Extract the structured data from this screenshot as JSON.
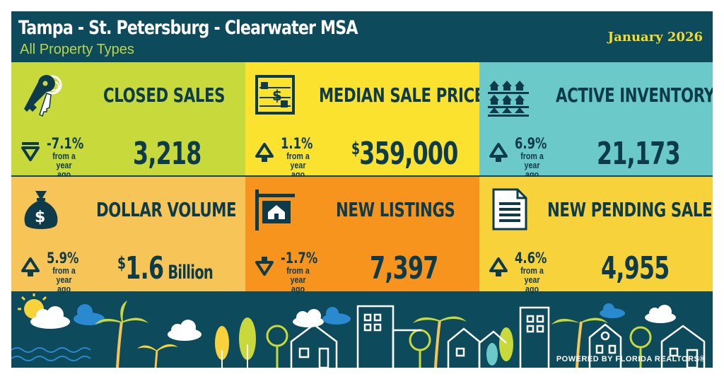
{
  "header": {
    "title": "Tampa - St. Petersburg - Clearwater MSA",
    "subtitle": "All Property Types",
    "date": "January 2026"
  },
  "from_label": "from a year ago",
  "tiles": [
    {
      "name": "CLOSED SALES",
      "change": "-7.1%",
      "direction": "down",
      "value": "3,218",
      "icon": "keys-icon",
      "color": "#c7d93b"
    },
    {
      "name": "MEDIAN SALE PRICE",
      "change": "1.1%",
      "direction": "up",
      "value_prefix": "$",
      "value": "359,000",
      "icon": "abacus-icon",
      "color": "#fbe22f"
    },
    {
      "name": "ACTIVE INVENTORY",
      "change": "6.9%",
      "direction": "up",
      "value": "21,173",
      "icon": "houses-icon",
      "color": "#6cc9c9"
    },
    {
      "name": "DOLLAR VOLUME",
      "change": "5.9%",
      "direction": "up",
      "value_prefix": "$",
      "value": "1.6",
      "value_suffix": " Billion",
      "icon": "money-bag-icon",
      "color": "#f7c457"
    },
    {
      "name": "NEW LISTINGS",
      "change": "-1.7%",
      "direction": "down",
      "value": "7,397",
      "icon": "house-sign-icon",
      "color": "#f7941d"
    },
    {
      "name": "NEW PENDING SALES",
      "change": "4.6%",
      "direction": "up",
      "value": "4,955",
      "icon": "document-icon",
      "color": "#f7d23a"
    }
  ],
  "footer": {
    "powered_by": "POWERED BY FLORIDA REALTORS®"
  }
}
